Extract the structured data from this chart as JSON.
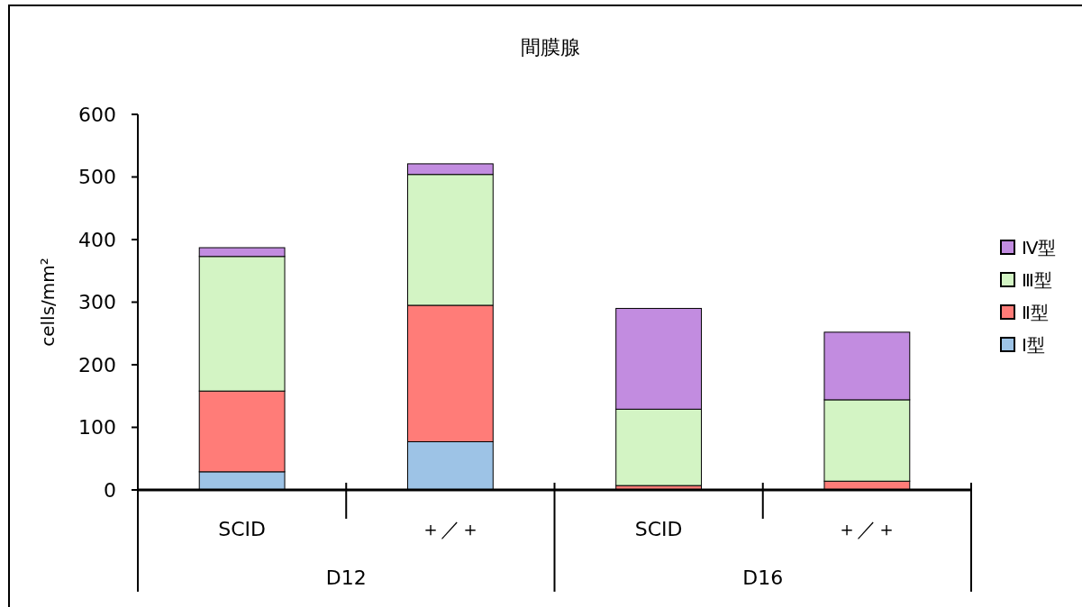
{
  "chart_data": {
    "type": "bar",
    "title": "間膜腺",
    "ylabel": "cells/mm²",
    "categories": [
      "SCID",
      "＋／＋",
      "SCID",
      "＋／＋"
    ],
    "annotations": [
      "D12",
      "D16"
    ],
    "stacked": true,
    "ylim": [
      0,
      600
    ],
    "yticks": [
      0,
      100,
      200,
      300,
      400,
      500,
      600
    ],
    "legend": "right",
    "grid": false,
    "series": [
      {
        "name": "Ⅰ型",
        "color": "#9dc3e6",
        "values": [
          29,
          77,
          0,
          0
        ]
      },
      {
        "name": "Ⅱ型",
        "color": "#ff7c78",
        "values": [
          129,
          218,
          7,
          14
        ]
      },
      {
        "name": "Ⅲ型",
        "color": "#d3f4c4",
        "values": [
          215,
          209,
          122,
          130
        ]
      },
      {
        "name": "Ⅳ型",
        "color": "#c28ce0",
        "values": [
          14,
          17,
          161,
          108
        ]
      }
    ]
  }
}
